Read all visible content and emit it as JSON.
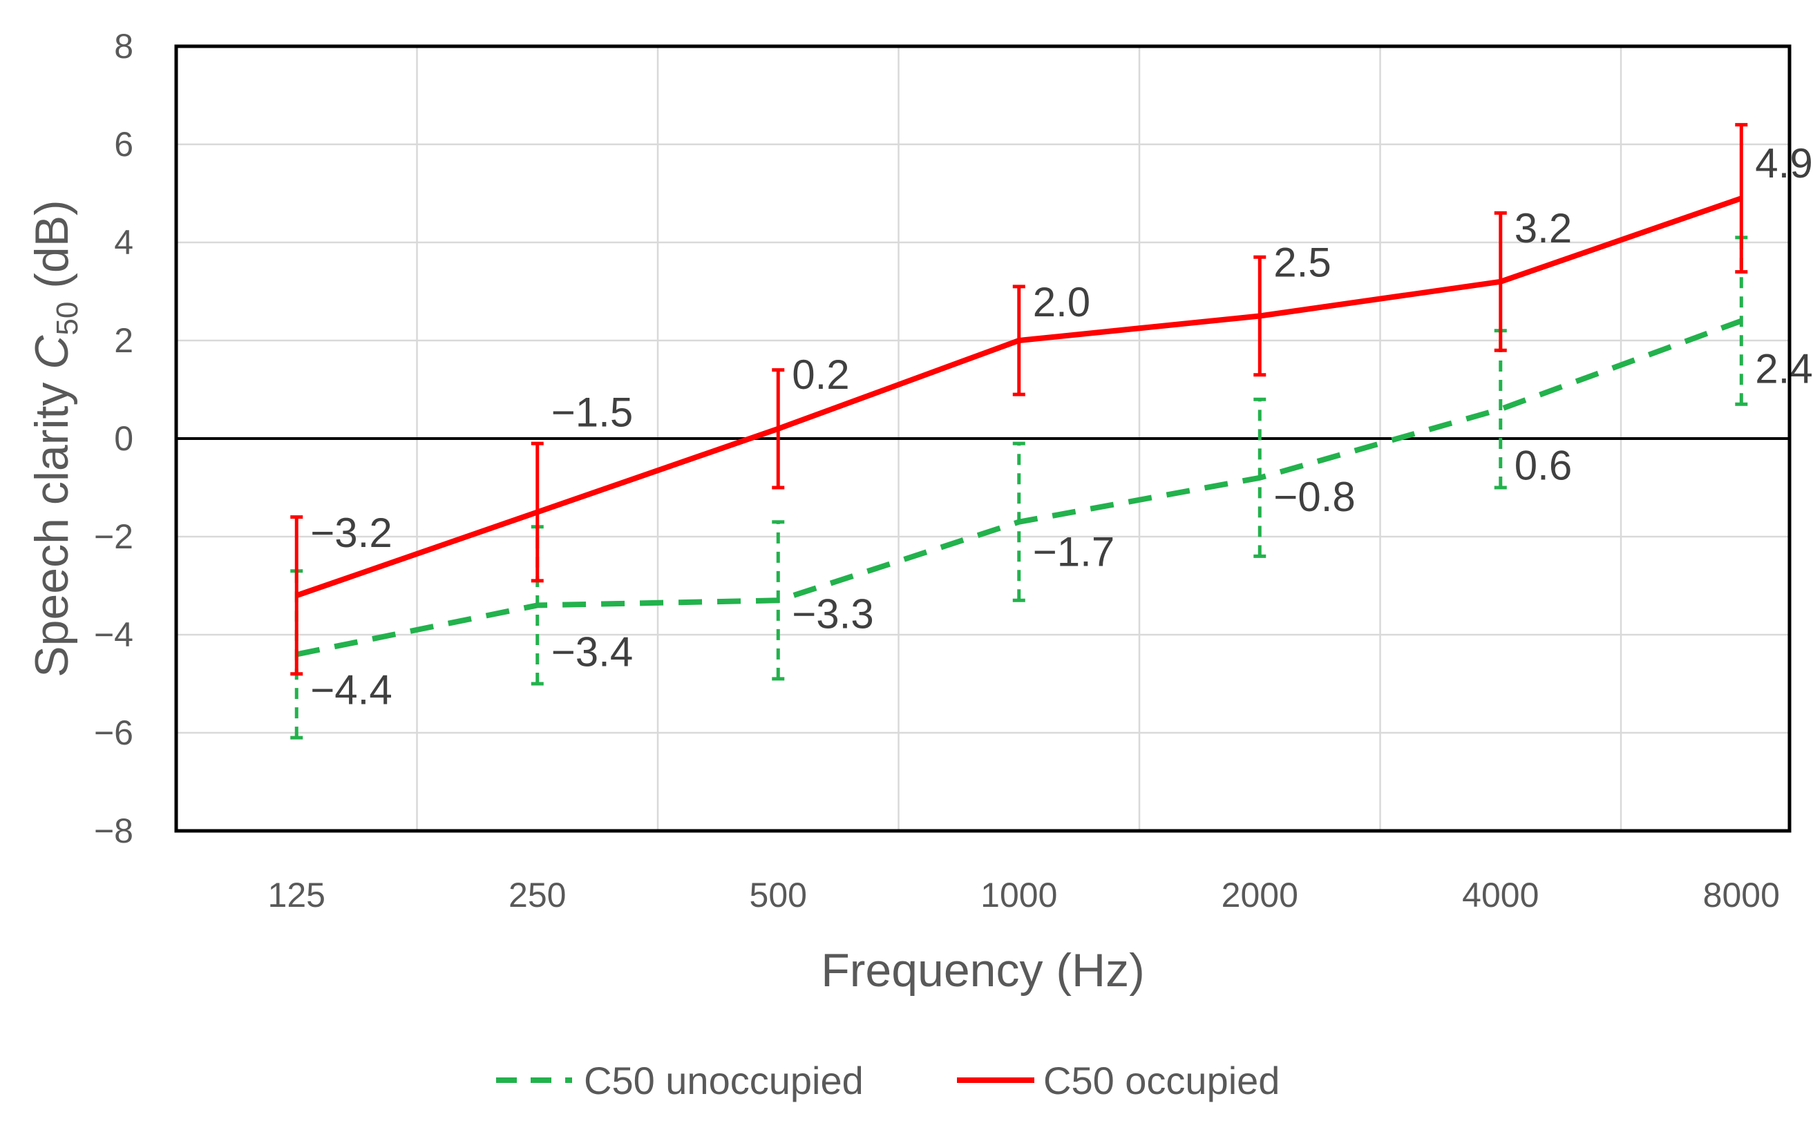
{
  "chart_data": {
    "type": "line",
    "title": "",
    "xlabel": "Frequency (Hz)",
    "ylabel": {
      "prefix": "Speech clarity ",
      "symbol": "C",
      "subscript": "50",
      "suffix": " (dB)"
    },
    "categories": [
      "125",
      "250",
      "500",
      "1000",
      "2000",
      "4000",
      "8000"
    ],
    "ylim": [
      -8,
      8
    ],
    "yticks": [
      "8",
      "6",
      "4",
      "2",
      "0",
      "−2",
      "−4",
      "−6",
      "−8"
    ],
    "ytick_values": [
      8,
      6,
      4,
      2,
      0,
      -2,
      -4,
      -6,
      -8
    ],
    "grid": true,
    "legend_position": "bottom",
    "series": [
      {
        "name": "C50 unoccupied",
        "color": "#22b24c",
        "line_style": "dashed",
        "values": [
          -4.4,
          -3.4,
          -3.3,
          -1.7,
          -0.8,
          0.6,
          2.4
        ],
        "labels": [
          "−4.4",
          "−3.4",
          "−3.3",
          "−1.7",
          "−0.8",
          "0.6",
          "2.4"
        ],
        "error_low": [
          -6.1,
          -5.0,
          -4.9,
          -3.3,
          -2.4,
          -1.0,
          0.7
        ],
        "error_high": [
          -2.7,
          -1.8,
          -1.7,
          -0.1,
          0.8,
          2.2,
          4.1
        ]
      },
      {
        "name": "C50 occupied",
        "color": "#ff0000",
        "line_style": "solid",
        "values": [
          -3.2,
          -1.5,
          0.2,
          2.0,
          2.5,
          3.2,
          4.9
        ],
        "labels": [
          "−3.2",
          "−1.5",
          "0.2",
          "2.0",
          "2.5",
          "3.2",
          "4.9"
        ],
        "error_low": [
          -4.8,
          -2.9,
          -1.0,
          0.9,
          1.3,
          1.8,
          3.4
        ],
        "error_high": [
          -1.6,
          -0.1,
          1.4,
          3.1,
          3.7,
          4.6,
          6.4
        ]
      }
    ]
  }
}
